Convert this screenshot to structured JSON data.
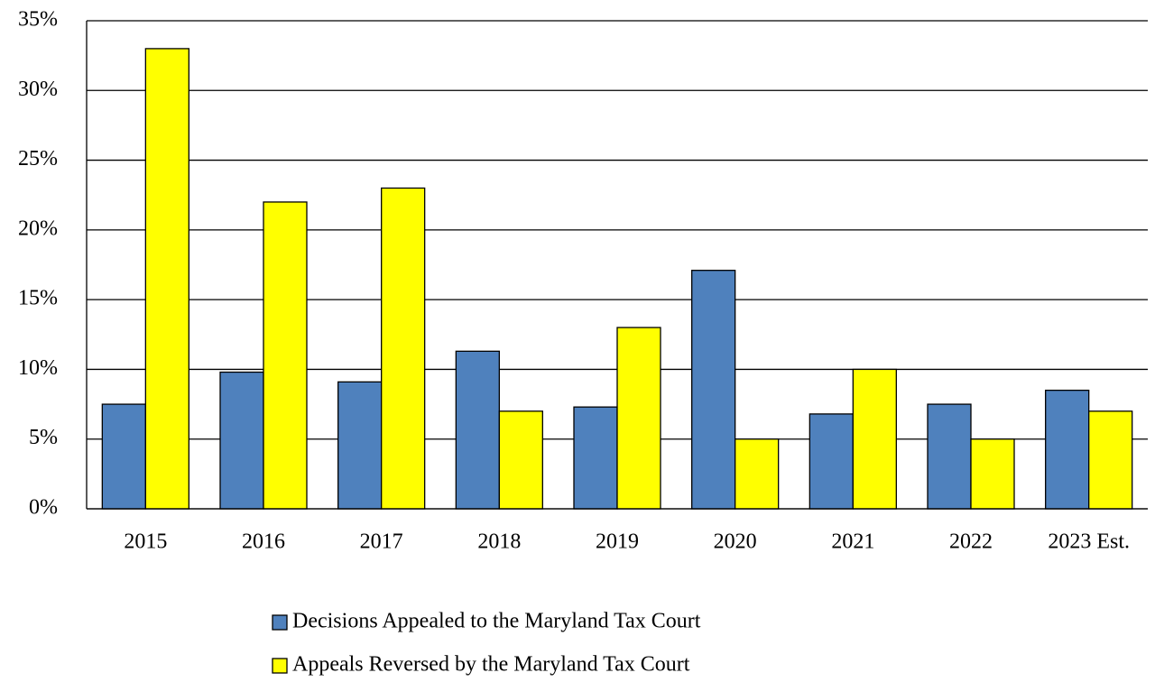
{
  "chart_data": {
    "type": "bar",
    "categories": [
      "2015",
      "2016",
      "2017",
      "2018",
      "2019",
      "2020",
      "2021",
      "2022",
      "2023 Est."
    ],
    "series": [
      {
        "name": "Decisions Appealed to the Maryland Tax Court",
        "color": "#4f81bd",
        "values": [
          7.5,
          9.8,
          9.1,
          11.3,
          7.3,
          17.1,
          6.8,
          7.5,
          8.5
        ]
      },
      {
        "name": "Appeals Reversed by the Maryland Tax Court",
        "color": "#ffff00",
        "values": [
          33,
          22,
          23,
          7,
          13,
          5,
          10,
          5,
          7
        ]
      }
    ],
    "ylim": [
      0,
      35
    ],
    "yticks": [
      {
        "value": 0,
        "label": "0%"
      },
      {
        "value": 5,
        "label": "5%"
      },
      {
        "value": 10,
        "label": "10%"
      },
      {
        "value": 15,
        "label": "15%"
      },
      {
        "value": 20,
        "label": "20%"
      },
      {
        "value": 25,
        "label": "25%"
      },
      {
        "value": 30,
        "label": "30%"
      },
      {
        "value": 35,
        "label": "35%"
      }
    ],
    "grid": true,
    "legend": "bottom"
  }
}
